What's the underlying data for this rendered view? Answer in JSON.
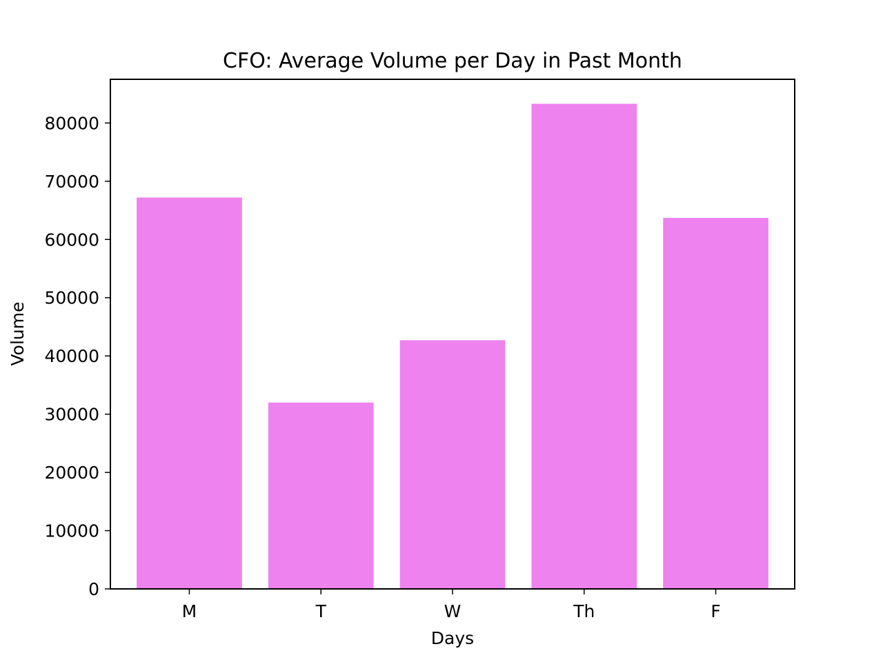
{
  "chart_data": {
    "type": "bar",
    "title": "CFO: Average Volume per Day in Past Month",
    "xlabel": "Days",
    "ylabel": "Volume",
    "categories": [
      "M",
      "T",
      "W",
      "Th",
      "F"
    ],
    "values": [
      67200,
      32000,
      42700,
      83300,
      63700
    ],
    "ylim": [
      0,
      87500
    ],
    "yticks": [
      0,
      10000,
      20000,
      30000,
      40000,
      50000,
      60000,
      70000,
      80000
    ],
    "grid": false,
    "legend": "none",
    "colors": {
      "bar": "#EE82EE",
      "axis": "#000000",
      "background": "#FFFFFF"
    }
  }
}
